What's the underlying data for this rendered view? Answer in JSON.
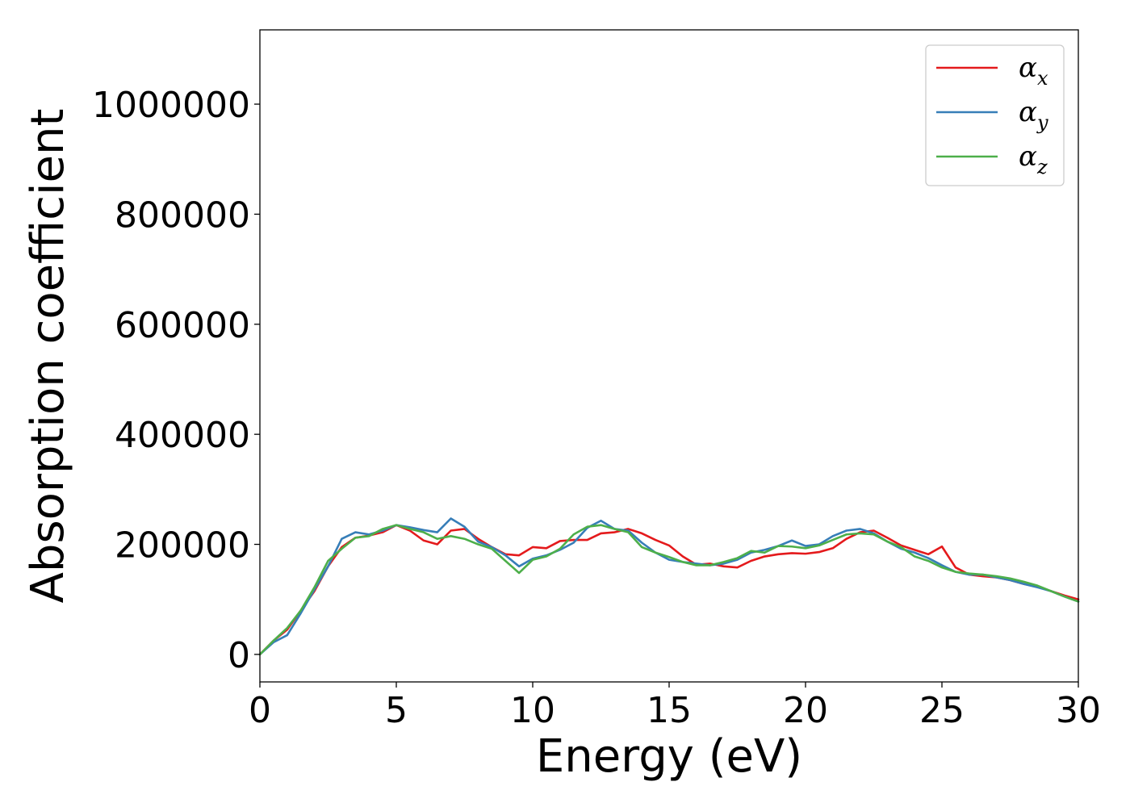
{
  "chart_data": {
    "type": "line",
    "title": "",
    "xlabel": "Energy (eV)",
    "ylabel": "Absorption coefficient",
    "xlim": [
      0,
      30
    ],
    "ylim": [
      -50000,
      1135000
    ],
    "xticks": [
      0,
      5,
      10,
      15,
      20,
      25,
      30
    ],
    "xtick_labels": [
      "0",
      "5",
      "10",
      "15",
      "20",
      "25",
      "30"
    ],
    "yticks": [
      0,
      200000,
      400000,
      600000,
      800000,
      1000000
    ],
    "ytick_labels": [
      "0",
      "200000",
      "400000",
      "600000",
      "800000",
      "1000000"
    ],
    "grid": false,
    "legend_position": "top-right",
    "x": [
      0,
      0.5,
      1,
      1.5,
      2,
      2.5,
      3,
      3.5,
      4,
      4.5,
      5,
      5.5,
      6,
      6.5,
      7,
      7.5,
      8,
      8.5,
      9,
      9.5,
      10,
      10.5,
      11,
      11.5,
      12,
      12.5,
      13,
      13.5,
      14,
      14.5,
      15,
      15.5,
      16,
      16.5,
      17,
      17.5,
      18,
      18.5,
      19,
      19.5,
      20,
      20.5,
      21,
      21.5,
      22,
      22.5,
      23,
      23.5,
      24,
      24.5,
      25,
      25.5,
      26,
      26.5,
      27,
      27.5,
      28,
      28.5,
      29,
      29.5,
      30
    ],
    "series": [
      {
        "name_base": "α",
        "name_sub": "x",
        "color": "#e41a1c",
        "values": [
          0,
          25000,
          45000,
          80000,
          115000,
          160000,
          195000,
          212000,
          216000,
          222000,
          235000,
          225000,
          207000,
          200000,
          225000,
          228000,
          210000,
          195000,
          182000,
          180000,
          195000,
          193000,
          206000,
          208000,
          208000,
          220000,
          222000,
          228000,
          220000,
          208000,
          198000,
          178000,
          163000,
          165000,
          160000,
          158000,
          170000,
          178000,
          182000,
          184000,
          183000,
          186000,
          193000,
          210000,
          222000,
          225000,
          212000,
          198000,
          190000,
          182000,
          196000,
          158000,
          145000,
          142000,
          140000,
          135000,
          128000,
          123000,
          115000,
          107000,
          100000
        ]
      },
      {
        "name_base": "α",
        "name_sub": "y",
        "color": "#377eb8",
        "values": [
          0,
          22000,
          35000,
          75000,
          118000,
          160000,
          210000,
          222000,
          218000,
          225000,
          235000,
          231000,
          226000,
          222000,
          247000,
          232000,
          205000,
          195000,
          180000,
          160000,
          174000,
          180000,
          190000,
          203000,
          230000,
          243000,
          228000,
          225000,
          203000,
          185000,
          172000,
          168000,
          165000,
          162000,
          165000,
          172000,
          185000,
          190000,
          197000,
          207000,
          197000,
          200000,
          215000,
          225000,
          228000,
          220000,
          205000,
          192000,
          185000,
          175000,
          162000,
          150000,
          145000,
          145000,
          140000,
          135000,
          128000,
          122000,
          115000,
          105000,
          96000
        ]
      },
      {
        "name_base": "α",
        "name_sub": "z",
        "color": "#4daf4a",
        "values": [
          0,
          25000,
          48000,
          80000,
          122000,
          170000,
          192000,
          212000,
          215000,
          228000,
          235000,
          228000,
          222000,
          210000,
          215000,
          210000,
          200000,
          192000,
          170000,
          148000,
          172000,
          178000,
          192000,
          218000,
          232000,
          235000,
          228000,
          222000,
          195000,
          185000,
          177000,
          168000,
          162000,
          162000,
          168000,
          175000,
          188000,
          185000,
          197000,
          196000,
          193000,
          198000,
          208000,
          218000,
          220000,
          218000,
          205000,
          195000,
          178000,
          170000,
          158000,
          150000,
          147000,
          145000,
          142000,
          138000,
          132000,
          125000,
          115000,
          105000,
          96000
        ]
      }
    ]
  }
}
